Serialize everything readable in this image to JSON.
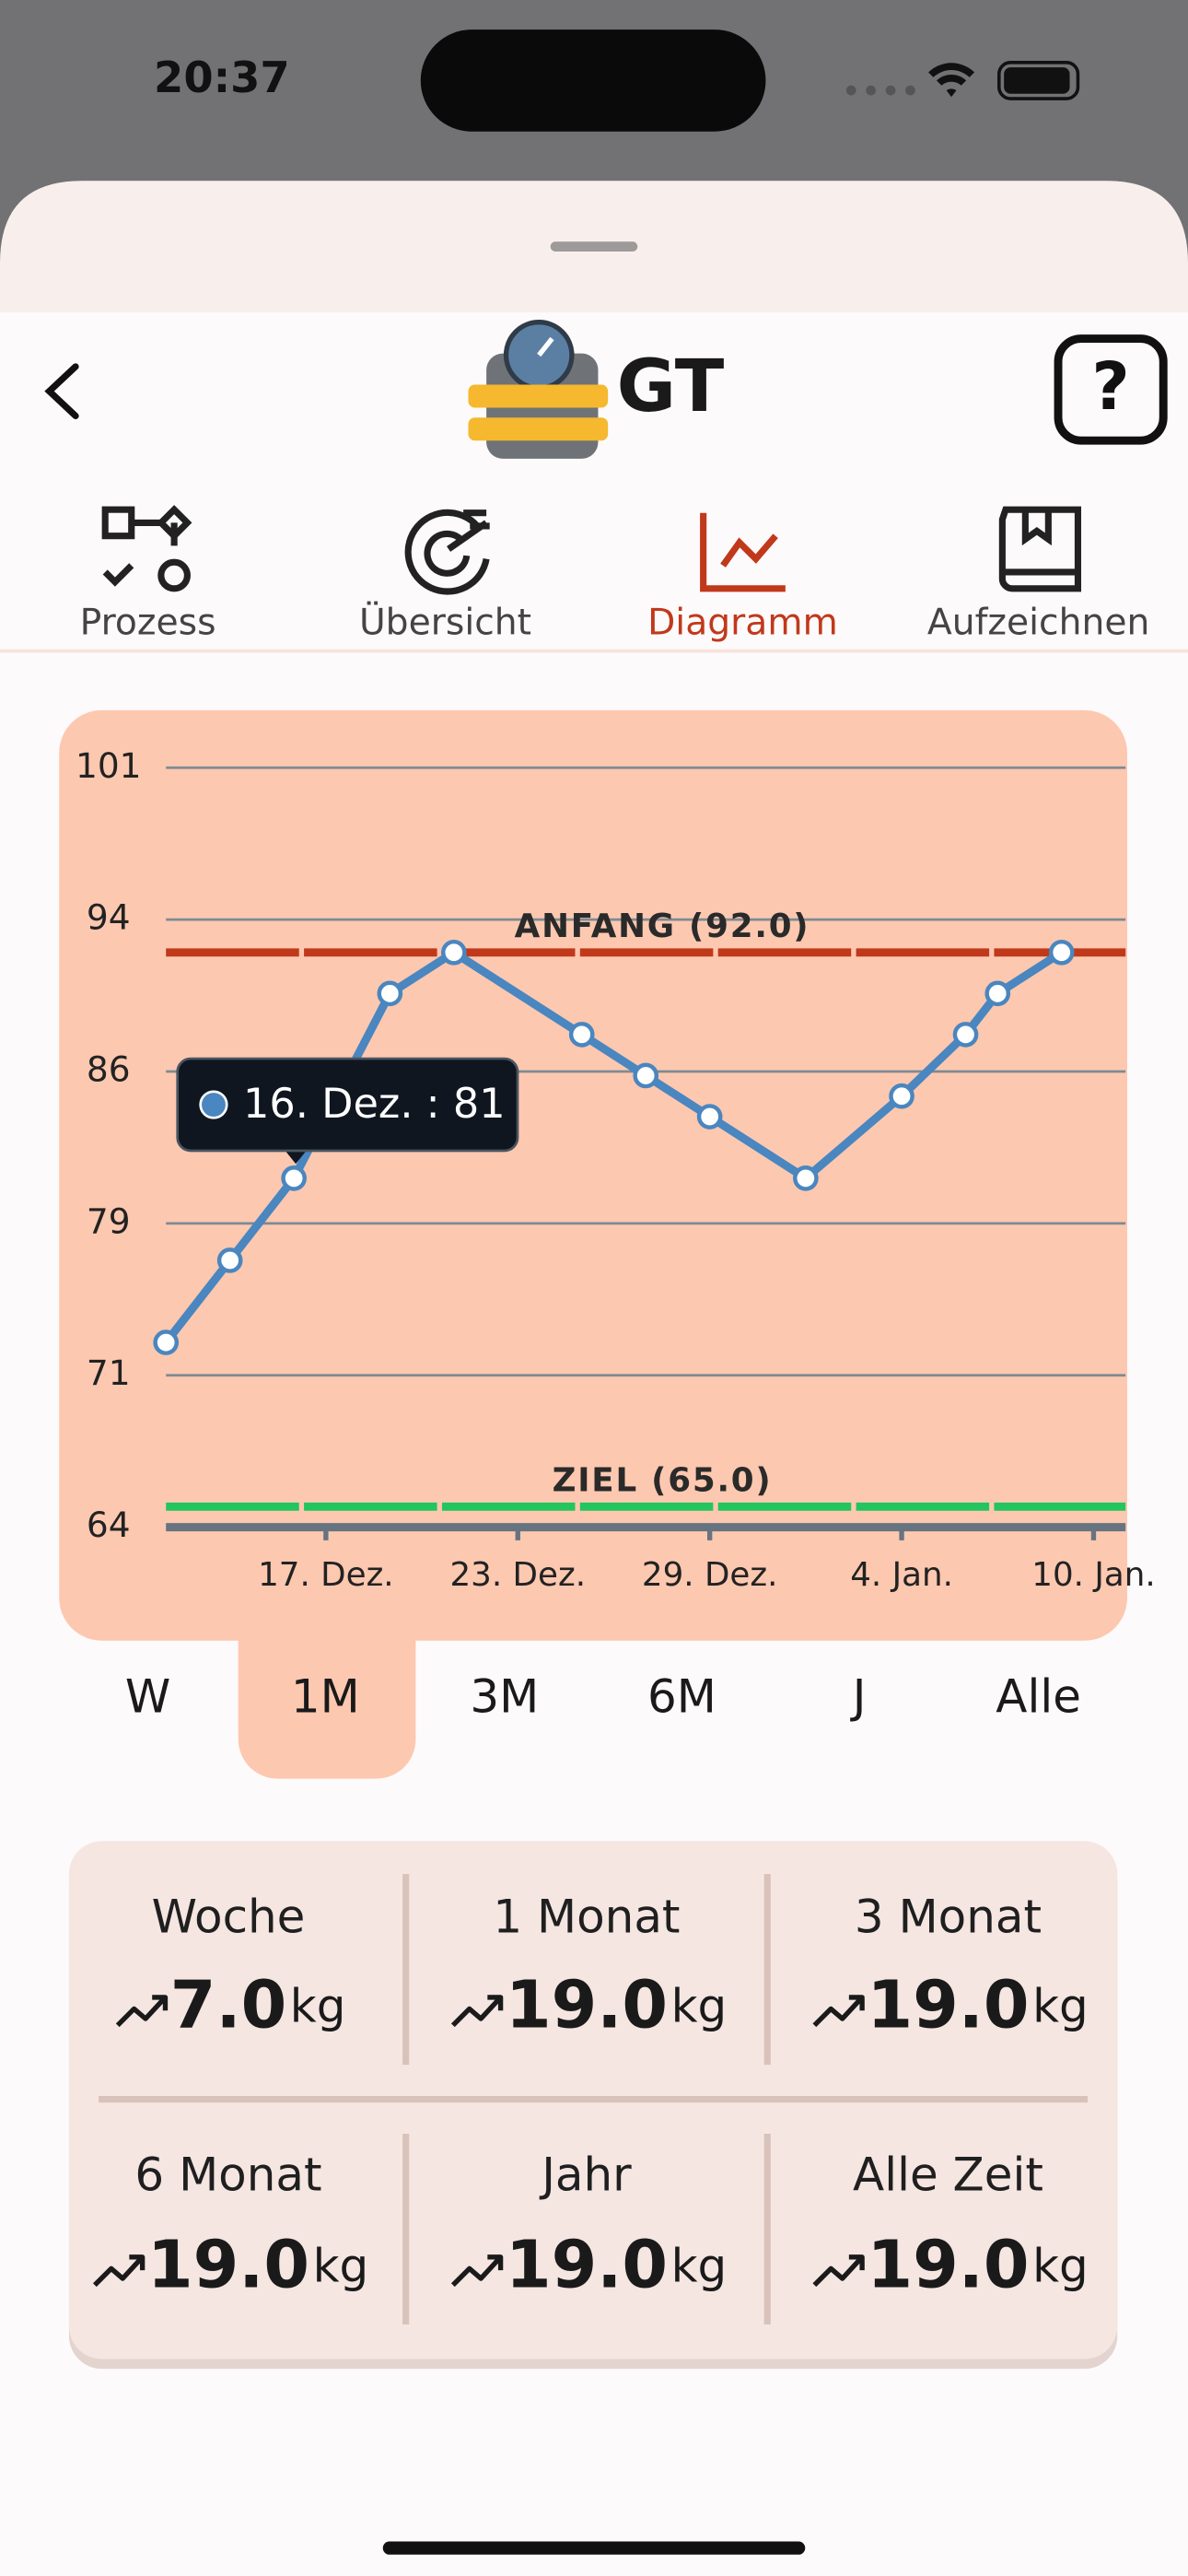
{
  "status_bar": {
    "time": "20:37"
  },
  "header": {
    "title": "GT",
    "help": "?"
  },
  "tabs": [
    {
      "label": "Prozess"
    },
    {
      "label": "Übersicht"
    },
    {
      "label": "Diagramm",
      "active": true
    },
    {
      "label": "Aufzeichnen"
    }
  ],
  "chart": {
    "type": "line",
    "x": [
      "12. Dez.",
      "14. Dez.",
      "16. Dez.",
      "19. Dez.",
      "21. Dez.",
      "25. Dez.",
      "27. Dez.",
      "29. Dez.",
      "1. Jan.",
      "4. Jan.",
      "6. Jan.",
      "7. Jan.",
      "9. Jan."
    ],
    "series": [
      {
        "color": "#4a86bf",
        "values": [
          73,
          77,
          81,
          90,
          92,
          88,
          86,
          84,
          81,
          85,
          88,
          90,
          92
        ]
      }
    ],
    "xlim": [
      "12. Dez.",
      "11. Jan."
    ],
    "xticks": [
      "17. Dez.",
      "23. Dez.",
      "29. Dez.",
      "4. Jan.",
      "10. Jan."
    ],
    "ylim": [
      64,
      101
    ],
    "yticks": [
      64,
      {
        "value": 71.4,
        "label": "71"
      },
      {
        "value": 78.8,
        "label": "79"
      },
      {
        "value": 86.2,
        "label": "86"
      },
      {
        "value": 93.6,
        "label": "94"
      },
      101
    ],
    "grid": true,
    "reference_lines": [
      {
        "label": "ANFANG (92.0)",
        "value": 92,
        "color": "#c0391b"
      },
      {
        "label": "ZIEL (65.0)",
        "value": 65,
        "color": "#22c55e"
      }
    ],
    "tooltip": {
      "label": "16. Dez. : 81"
    }
  },
  "ranges": [
    {
      "label": "W"
    },
    {
      "label": "1M",
      "active": true
    },
    {
      "label": "3M"
    },
    {
      "label": "6M"
    },
    {
      "label": "J"
    },
    {
      "label": "Alle"
    }
  ],
  "stats": [
    {
      "label": "Woche",
      "value": "7.0",
      "unit": "kg"
    },
    {
      "label": "1 Monat",
      "value": "19.0",
      "unit": "kg"
    },
    {
      "label": "3 Monat",
      "value": "19.0",
      "unit": "kg"
    },
    {
      "label": "6 Monat",
      "value": "19.0",
      "unit": "kg"
    },
    {
      "label": "Jahr",
      "value": "19.0",
      "unit": "kg"
    },
    {
      "label": "Alle Zeit",
      "value": "19.0",
      "unit": "kg"
    }
  ]
}
